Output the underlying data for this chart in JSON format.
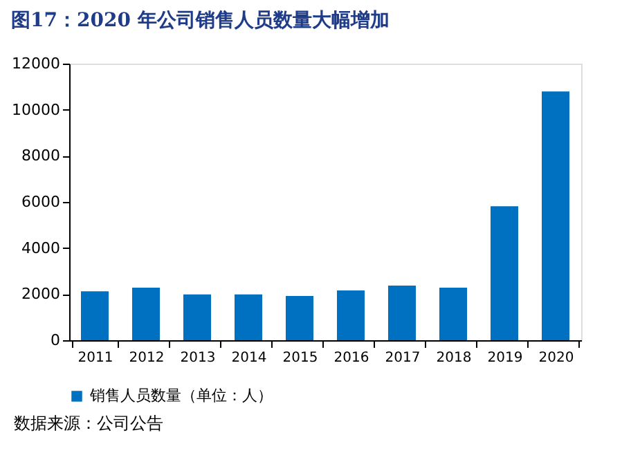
{
  "chart_data": {
    "type": "bar",
    "title": "图17：2020 年公司销售人员数量大幅增加",
    "categories": [
      "2011",
      "2012",
      "2013",
      "2014",
      "2015",
      "2016",
      "2017",
      "2018",
      "2019",
      "2020"
    ],
    "series": [
      {
        "name": "销售人员数量（单位：人）",
        "color": "#0070c0",
        "values": [
          2120,
          2280,
          1990,
          1990,
          1920,
          2160,
          2370,
          2280,
          5810,
          10790
        ]
      }
    ],
    "ylim": [
      0,
      12000
    ],
    "yticks": [
      0,
      2000,
      4000,
      6000,
      8000,
      10000,
      12000
    ],
    "grid": false,
    "legend": "bottom",
    "annotations": [
      "数据来源：公司公告"
    ]
  }
}
